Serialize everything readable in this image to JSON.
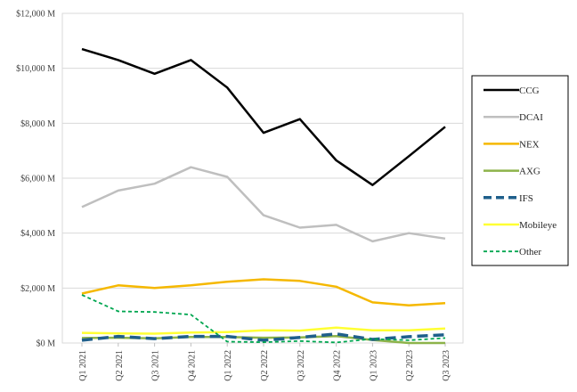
{
  "chart_data": {
    "type": "line",
    "title": "",
    "xlabel": "",
    "ylabel": "",
    "ylim": [
      0,
      12000
    ],
    "y_ticks": [
      0,
      2000,
      4000,
      6000,
      8000,
      10000,
      12000
    ],
    "y_tick_labels": [
      "$0 M",
      "$2,000 M",
      "$4,000 M",
      "$6,000 M",
      "$8,000 M",
      "$10,000 M",
      "$12,000 M"
    ],
    "grid": "horizontal",
    "legend_position": "right",
    "categories": [
      "Q1 2021",
      "Q2 2021",
      "Q3 2021",
      "Q4 2021",
      "Q1 2022",
      "Q2 2022",
      "Q3 2022",
      "Q4 2022",
      "Q1 2023",
      "Q2 2023",
      "Q3 2023"
    ],
    "series": [
      {
        "name": "CCG",
        "color": "#000000",
        "dash": "solid",
        "values": [
          10700,
          10300,
          9800,
          10300,
          9300,
          7650,
          8150,
          6650,
          5750,
          6800,
          7870
        ]
      },
      {
        "name": "DCAI",
        "color": "#bfbfbf",
        "dash": "solid",
        "values": [
          4950,
          5550,
          5800,
          6400,
          6050,
          4650,
          4200,
          4300,
          3700,
          4000,
          3800
        ]
      },
      {
        "name": "NEX",
        "color": "#f5b800",
        "dash": "solid",
        "values": [
          1800,
          2100,
          2000,
          2100,
          2230,
          2320,
          2260,
          2050,
          1480,
          1370,
          1450
        ]
      },
      {
        "name": "AXG",
        "color": "#8db34a",
        "dash": "solid",
        "values": [
          180,
          190,
          170,
          220,
          220,
          190,
          200,
          250,
          110,
          0,
          0
        ]
      },
      {
        "name": "IFS",
        "color": "#1f5f8b",
        "dash": "long-dash",
        "values": [
          100,
          240,
          160,
          240,
          240,
          100,
          200,
          330,
          130,
          230,
          300
        ]
      },
      {
        "name": "Mobileye",
        "color": "#ffff33",
        "dash": "solid",
        "values": [
          370,
          350,
          340,
          380,
          400,
          460,
          450,
          560,
          460,
          460,
          530
        ]
      },
      {
        "name": "Other",
        "color": "#00a650",
        "dash": "short-dash",
        "values": [
          1750,
          1150,
          1130,
          1030,
          50,
          30,
          70,
          20,
          150,
          100,
          180
        ]
      }
    ]
  }
}
